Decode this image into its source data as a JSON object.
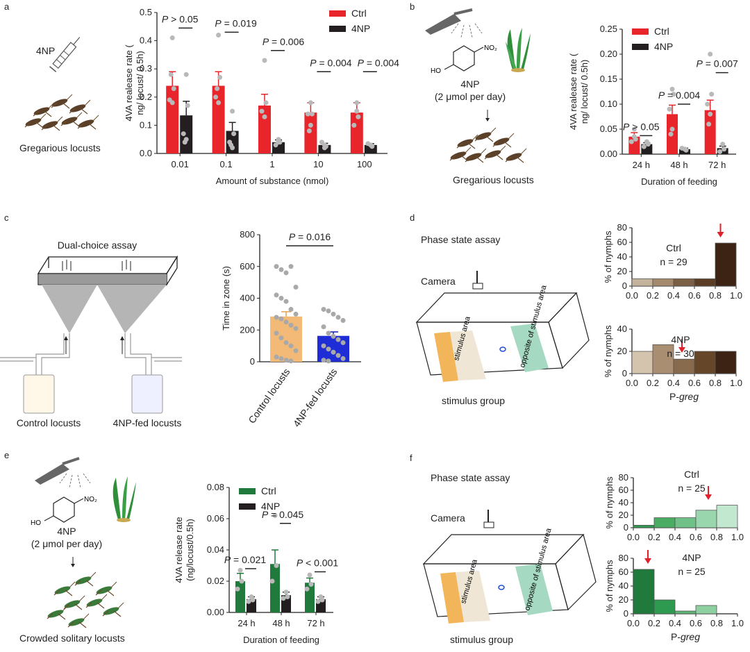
{
  "panel_letters": {
    "a": "a",
    "b": "b",
    "c": "c",
    "d": "d",
    "e": "e",
    "f": "f"
  },
  "illustrations": {
    "a_chem": "4NP",
    "a_caption": "Gregarious locusts",
    "b_chem": "4NP",
    "b_dose": "(2 μmol per day)",
    "b_caption": "Gregarious locusts",
    "e_chem": "4NP",
    "e_dose": "(2 μmol per day)",
    "e_caption": "Crowded solitary locusts",
    "c_title": "Dual-choice assay",
    "c_left": "Control locusts",
    "c_right": "4NP-fed locusts",
    "d_title": "Phase state assay",
    "d_camera": "Camera",
    "d_stim_area": "stimulus area",
    "d_opp_area": "opposite of stimulus area",
    "d_group": "stimulus group",
    "f_title": "Phase state assay",
    "f_camera": "Camera",
    "f_stim_area": "stimulus area",
    "f_opp_area": "opposite of stimulus area",
    "f_group": "stimulus group",
    "no2": "NO₂",
    "ho": "HO"
  },
  "colors": {
    "red": "#e8252b",
    "black": "#231f20",
    "green": "#1f7a3c",
    "orange": "#f2b977",
    "blue": "#1f2dd6",
    "dot": "#b9b9b9"
  },
  "chart_data": [
    {
      "id": "a",
      "type": "bar",
      "categories": [
        "0.01",
        "0.1",
        "1",
        "10",
        "100"
      ],
      "series": [
        {
          "name": "Ctrl",
          "values": [
            0.24,
            0.24,
            0.17,
            0.145,
            0.145
          ],
          "errors": [
            0.05,
            0.05,
            0.04,
            0.035,
            0.035
          ]
        },
        {
          "name": "4NP",
          "values": [
            0.135,
            0.08,
            0.04,
            0.03,
            0.03
          ],
          "errors": [
            0.05,
            0.03,
            0.008,
            0.006,
            0.005
          ]
        }
      ],
      "pvalues": [
        "P > 0.05",
        "P = 0.019",
        "P = 0.006",
        "P = 0.004",
        "P = 0.004"
      ],
      "xlabel": "Amount of substance (nmol)",
      "ylabel": "4VA realease rate (ng/ locust/ 0.5h)",
      "ylim": [
        0,
        0.5
      ],
      "yticks": [
        "0.0",
        "0.1",
        "0.2",
        "0.3",
        "0.4",
        "0.5"
      ]
    },
    {
      "id": "b",
      "type": "bar",
      "categories": [
        "24 h",
        "48 h",
        "72 h"
      ],
      "series": [
        {
          "name": "Ctrl",
          "values": [
            0.035,
            0.08,
            0.088
          ],
          "errors": [
            0.008,
            0.018,
            0.02
          ]
        },
        {
          "name": "4NP",
          "values": [
            0.02,
            0.01,
            0.012
          ],
          "errors": [
            0.003,
            0.002,
            0.004
          ]
        }
      ],
      "pvalues": [
        "P > 0.05",
        "P = 0.004",
        "P = 0.007"
      ],
      "xlabel": "Duration of feeding",
      "ylabel": "4VA realease rate (ng/ locust/ 0.5h)",
      "ylim": [
        0,
        0.25
      ],
      "yticks": [
        "0.00",
        "0.05",
        "0.10",
        "0.15",
        "0.20",
        "0.25"
      ]
    },
    {
      "id": "c",
      "type": "bar",
      "categories": [
        "Control locusts",
        "4NP-fed locusts"
      ],
      "values": [
        285,
        163
      ],
      "errors": [
        30,
        25
      ],
      "pvalue": "P = 0.016",
      "ylabel": "Time in zone (s)",
      "ylim": [
        0,
        800
      ],
      "yticks": [
        "0",
        "200",
        "400",
        "600",
        "800"
      ]
    },
    {
      "id": "d_ctrl",
      "type": "bar",
      "title": "Ctrl",
      "n": "n = 29",
      "bins": [
        0.1,
        0.3,
        0.5,
        0.7,
        0.9
      ],
      "values": [
        10,
        10,
        10,
        10,
        59
      ],
      "arrow_x": 0.85,
      "ylabel": "% of nymphs",
      "ylim": [
        0,
        80
      ],
      "yticks": [
        "0",
        "20",
        "40",
        "60",
        "80"
      ],
      "xticks": [
        "0.0",
        "0.2",
        "0.4",
        "0.6",
        "0.8",
        "1.0"
      ]
    },
    {
      "id": "d_4np",
      "type": "bar",
      "title": "4NP",
      "n": "n = 30",
      "bins": [
        0.1,
        0.3,
        0.5,
        0.7,
        0.9
      ],
      "values": [
        20,
        26,
        13,
        20,
        20
      ],
      "arrow_x": 0.48,
      "ylabel": "% of nymphs",
      "xlabel": "P-greg",
      "ylim": [
        0,
        40
      ],
      "yticks": [
        "0",
        "20",
        "40"
      ],
      "xticks": [
        "0.0",
        "0.2",
        "0.4",
        "0.6",
        "0.8",
        "1.0"
      ]
    },
    {
      "id": "e",
      "type": "bar",
      "categories": [
        "24 h",
        "48 h",
        "72 h"
      ],
      "series": [
        {
          "name": "Ctrl",
          "values": [
            0.02,
            0.031,
            0.019
          ],
          "errors": [
            0.005,
            0.009,
            0.003
          ]
        },
        {
          "name": "4NP",
          "values": [
            0.0085,
            0.011,
            0.0085
          ],
          "errors": [
            0.0015,
            0.002,
            0.0015
          ]
        }
      ],
      "pvalues": [
        "P = 0.021",
        "P = 0.045",
        "P < 0.001"
      ],
      "xlabel": "Duration of feeding",
      "ylabel": "4VA release rate (ng/locust/0.5h)",
      "ylim": [
        0,
        0.08
      ],
      "yticks": [
        "0.00",
        "0.02",
        "0.04",
        "0.06",
        "0.08"
      ]
    },
    {
      "id": "f_ctrl",
      "type": "bar",
      "title": "Ctrl",
      "n": "n = 25",
      "bins": [
        0.1,
        0.3,
        0.5,
        0.7,
        0.9
      ],
      "values": [
        4,
        16,
        16,
        28,
        36
      ],
      "arrow_x": 0.72,
      "ylabel": "% of nymphs",
      "ylim": [
        0,
        80
      ],
      "yticks": [
        "0",
        "20",
        "40",
        "60",
        "80"
      ],
      "xticks": [
        "0.0",
        "0.2",
        "0.4",
        "0.6",
        "0.8",
        "1.0"
      ]
    },
    {
      "id": "f_4np",
      "type": "bar",
      "title": "4NP",
      "n": "n = 25",
      "bins": [
        0.1,
        0.3,
        0.5,
        0.7,
        0.9
      ],
      "values": [
        64,
        20,
        4,
        12,
        0
      ],
      "arrow_x": 0.14,
      "ylabel": "% of nymphs",
      "xlabel": "P-greg",
      "ylim": [
        0,
        80
      ],
      "yticks": [
        "0",
        "20",
        "40",
        "60",
        "80"
      ],
      "xticks": [
        "0.0",
        "0.2",
        "0.4",
        "0.6",
        "0.8",
        "1.0"
      ]
    }
  ]
}
